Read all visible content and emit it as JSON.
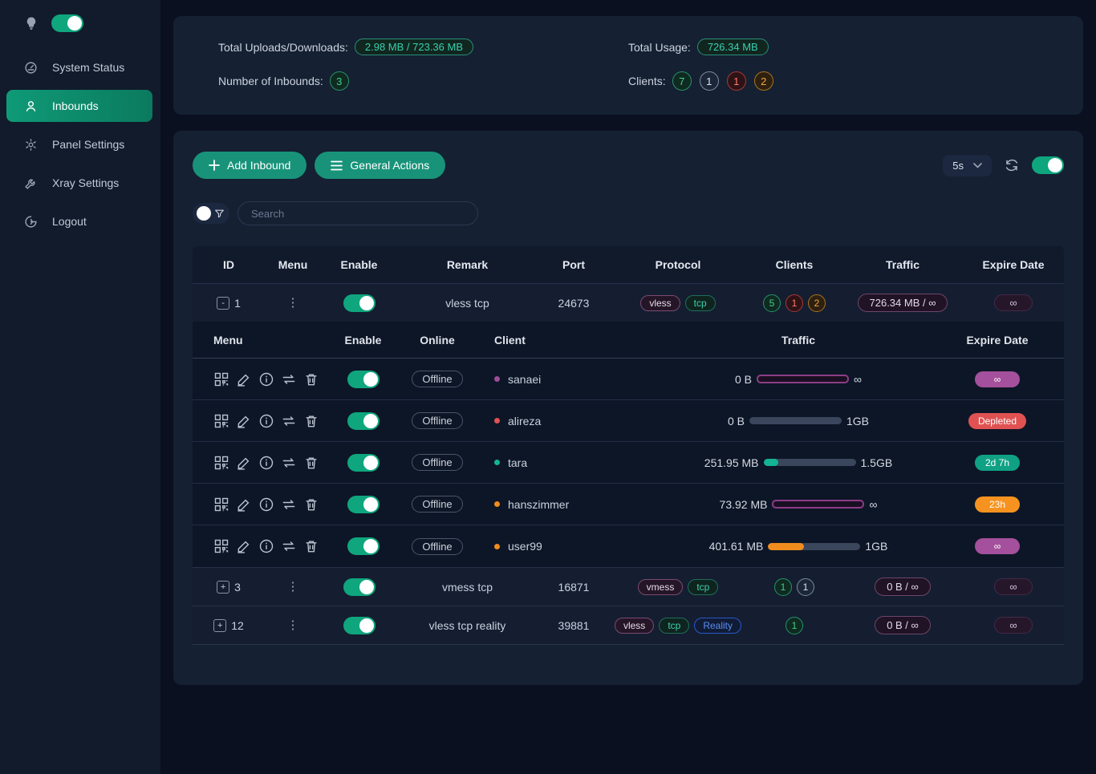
{
  "sidebar": {
    "theme_toggle_on": true,
    "items": [
      {
        "label": "System Status",
        "icon": "dashboard-icon",
        "active": false
      },
      {
        "label": "Inbounds",
        "icon": "user-icon",
        "active": true
      },
      {
        "label": "Panel Settings",
        "icon": "gear-icon",
        "active": false
      },
      {
        "label": "Xray Settings",
        "icon": "wrench-icon",
        "active": false
      },
      {
        "label": "Logout",
        "icon": "logout-icon",
        "active": false
      }
    ]
  },
  "stats": {
    "uploads_label": "Total Uploads/Downloads:",
    "uploads_value": "2.98 MB / 723.36 MB",
    "inbounds_label": "Number of Inbounds:",
    "inbounds_value": "3",
    "usage_label": "Total Usage:",
    "usage_value": "726.34 MB",
    "clients_label": "Clients:",
    "client_badges": [
      {
        "value": "7",
        "color": "green"
      },
      {
        "value": "1",
        "color": "gray"
      },
      {
        "value": "1",
        "color": "red"
      },
      {
        "value": "2",
        "color": "orange"
      }
    ]
  },
  "toolbar": {
    "add_inbound_label": "Add Inbound",
    "general_actions_label": "General Actions",
    "refresh_interval": "5s",
    "auto_refresh_on": true
  },
  "search": {
    "placeholder": "Search"
  },
  "table": {
    "headers": [
      "ID",
      "Menu",
      "Enable",
      "Remark",
      "Port",
      "Protocol",
      "Clients",
      "Traffic",
      "Expire Date"
    ],
    "rows": [
      {
        "expand": "-",
        "id": "1",
        "enabled": true,
        "remark": "vless tcp",
        "port": "24673",
        "protocols": [
          {
            "label": "vless",
            "color": "purple"
          },
          {
            "label": "tcp",
            "color": "teal"
          }
        ],
        "clients": [
          {
            "value": "5",
            "color": "green"
          },
          {
            "value": "1",
            "color": "red"
          },
          {
            "value": "2",
            "color": "orange"
          }
        ],
        "traffic": "726.34 MB / ∞",
        "expire": "∞",
        "expanded": true
      },
      {
        "expand": "+",
        "id": "3",
        "enabled": true,
        "remark": "vmess tcp",
        "port": "16871",
        "protocols": [
          {
            "label": "vmess",
            "color": "purple"
          },
          {
            "label": "tcp",
            "color": "teal"
          }
        ],
        "clients": [
          {
            "value": "1",
            "color": "green"
          },
          {
            "value": "1",
            "color": "gray"
          }
        ],
        "traffic": "0 B / ∞",
        "expire": "∞",
        "expanded": false
      },
      {
        "expand": "+",
        "id": "12",
        "enabled": true,
        "remark": "vless tcp reality",
        "port": "39881",
        "protocols": [
          {
            "label": "vless",
            "color": "purple"
          },
          {
            "label": "tcp",
            "color": "teal"
          },
          {
            "label": "Reality",
            "color": "blue"
          }
        ],
        "clients": [
          {
            "value": "1",
            "color": "green"
          }
        ],
        "traffic": "0 B / ∞",
        "expire": "∞",
        "expanded": false
      }
    ],
    "subtable": {
      "headers": [
        "Menu",
        "Enable",
        "Online",
        "Client",
        "Traffic",
        "Expire Date"
      ],
      "menu_icons": [
        "qrcode-icon",
        "edit-icon",
        "info-icon",
        "reset-traffic-icon",
        "delete-icon"
      ],
      "rows": [
        {
          "enabled": true,
          "online": "Offline",
          "dot": "purple",
          "client": "sanaei",
          "used": "0 B",
          "limit": "∞",
          "bar": {
            "kind": "unlimited"
          },
          "expire": {
            "label": "∞",
            "color": "magenta"
          }
        },
        {
          "enabled": true,
          "online": "Offline",
          "dot": "red",
          "client": "alireza",
          "used": "0 B",
          "limit": "1GB",
          "bar": {
            "kind": "pct",
            "pct": 0,
            "color": "teal"
          },
          "expire": {
            "label": "Depleted",
            "color": "red"
          }
        },
        {
          "enabled": true,
          "online": "Offline",
          "dot": "teal",
          "client": "tara",
          "used": "251.95 MB",
          "limit": "1.5GB",
          "bar": {
            "kind": "pct",
            "pct": 16,
            "color": "teal"
          },
          "expire": {
            "label": "2d 7h",
            "color": "teal"
          }
        },
        {
          "enabled": true,
          "online": "Offline",
          "dot": "orange",
          "client": "hanszimmer",
          "used": "73.92 MB",
          "limit": "∞",
          "bar": {
            "kind": "unlimited"
          },
          "expire": {
            "label": "23h",
            "color": "orange"
          }
        },
        {
          "enabled": true,
          "online": "Offline",
          "dot": "orange",
          "client": "user99",
          "used": "401.61 MB",
          "limit": "1GB",
          "bar": {
            "kind": "pct",
            "pct": 39,
            "color": "orange"
          },
          "expire": {
            "label": "∞",
            "color": "magenta"
          }
        }
      ]
    }
  }
}
